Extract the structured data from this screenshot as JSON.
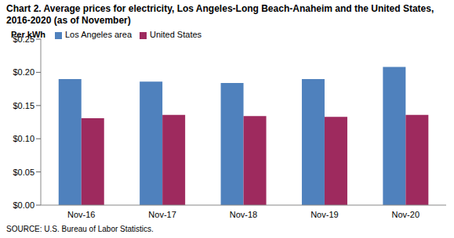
{
  "chart_data": {
    "type": "bar",
    "title": "Chart 2. Average prices for electricity, Los Angeles-Long Beach-Anaheim and the United States, 2016-2020  (as of November)",
    "y_label": "Per kWh",
    "annotations": [
      "SOURCE: U.S. Bureau of Labor Statistics."
    ],
    "categories": [
      "Nov-16",
      "Nov-17",
      "Nov-18",
      "Nov-19",
      "Nov-20"
    ],
    "series": [
      {
        "name": "Los Angeles area",
        "color": "#4f81bd",
        "values": [
          0.19,
          0.186,
          0.184,
          0.19,
          0.208
        ]
      },
      {
        "name": "United States",
        "color": "#9e2a5e",
        "values": [
          0.131,
          0.136,
          0.134,
          0.133,
          0.136
        ]
      }
    ],
    "ylim": [
      0,
      0.25
    ],
    "yticks": [
      {
        "value": 0,
        "label": "$0.00"
      },
      {
        "value": 0.05,
        "label": "$0.05"
      },
      {
        "value": 0.1,
        "label": "$0.10"
      },
      {
        "value": 0.15,
        "label": "$0.15"
      },
      {
        "value": 0.2,
        "label": "$0.20"
      },
      {
        "value": 0.25,
        "label": "$0.25"
      }
    ],
    "grid": false,
    "legend": "top-left"
  }
}
